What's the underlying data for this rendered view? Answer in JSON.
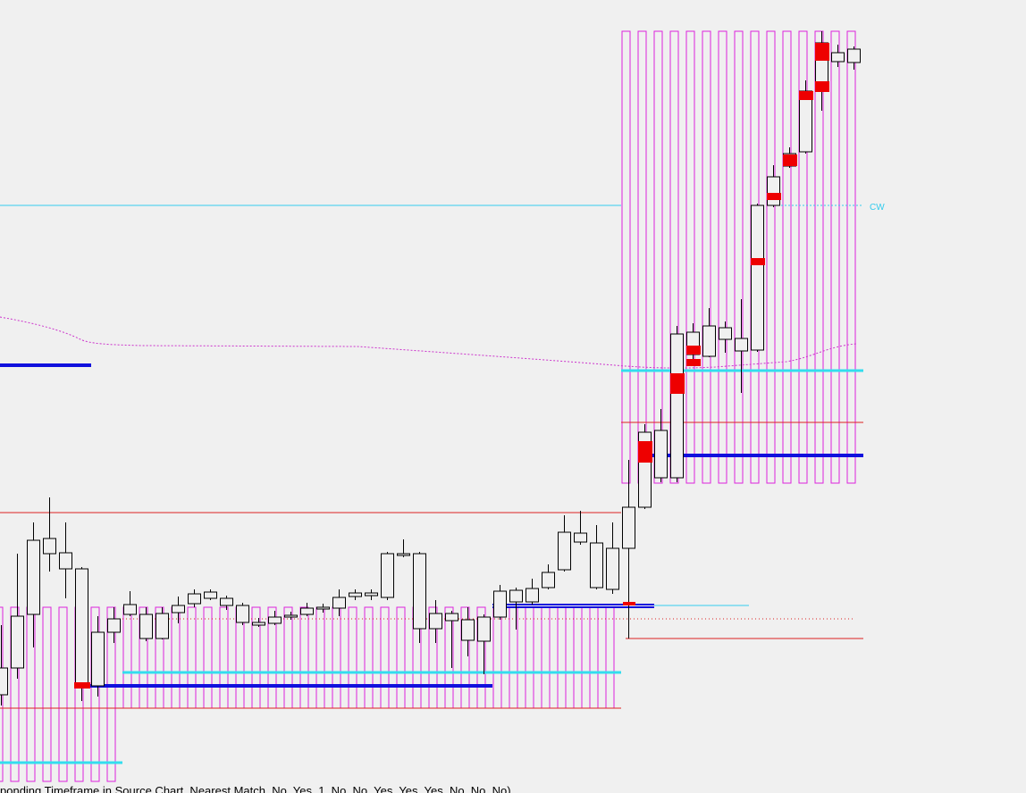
{
  "chart_data": {
    "type": "candlestick",
    "ylim": [
      0,
      888
    ],
    "open": [
      110,
      140,
      200,
      268,
      251,
      120,
      120,
      180,
      200,
      173,
      173,
      202,
      212,
      218,
      210,
      191,
      188,
      190,
      197,
      200,
      206,
      207,
      220,
      221,
      219,
      266,
      184,
      184,
      193,
      171,
      170,
      197,
      214,
      214,
      230,
      250,
      281,
      230,
      228,
      274,
      320,
      353,
      353,
      491,
      489,
      508,
      495,
      496,
      658,
      702,
      718,
      786,
      819,
      818
    ],
    "high": [
      188,
      268,
      303,
      331,
      303,
      253,
      198,
      208,
      226,
      208,
      208,
      220,
      228,
      228,
      221,
      213,
      196,
      204,
      203,
      213,
      212,
      228,
      228,
      228,
      270,
      284,
      270,
      216,
      204,
      208,
      200,
      233,
      230,
      240,
      256,
      311,
      316,
      300,
      303,
      373,
      413,
      430,
      523,
      526,
      543,
      528,
      553,
      660,
      703,
      723,
      798,
      853,
      838,
      836
    ],
    "low": [
      98,
      128,
      163,
      248,
      218,
      103,
      108,
      168,
      198,
      170,
      172,
      190,
      208,
      216,
      205,
      188,
      186,
      188,
      194,
      198,
      202,
      198,
      216,
      216,
      216,
      264,
      168,
      168,
      140,
      153,
      133,
      194,
      183,
      211,
      228,
      248,
      278,
      228,
      223,
      173,
      318,
      348,
      348,
      478,
      488,
      493,
      448,
      494,
      656,
      700,
      716,
      764,
      813,
      810
    ],
    "close": [
      140,
      198,
      283,
      285,
      269,
      251,
      180,
      195,
      211,
      200,
      201,
      210,
      223,
      225,
      218,
      210,
      191,
      197,
      199,
      207,
      208,
      219,
      224,
      224,
      268,
      268,
      268,
      201,
      201,
      194,
      197,
      226,
      227,
      229,
      247,
      292,
      291,
      280,
      274,
      320,
      404,
      406,
      514,
      516,
      523,
      521,
      509,
      658,
      690,
      716,
      786,
      840,
      829,
      833
    ],
    "annotations": [
      "CW"
    ],
    "footer": "ponding Timeframe in Source Chart, Nearest Match, No, Yes, 1, No, No, Yes, Yes, Yes, No, No, No)"
  }
}
